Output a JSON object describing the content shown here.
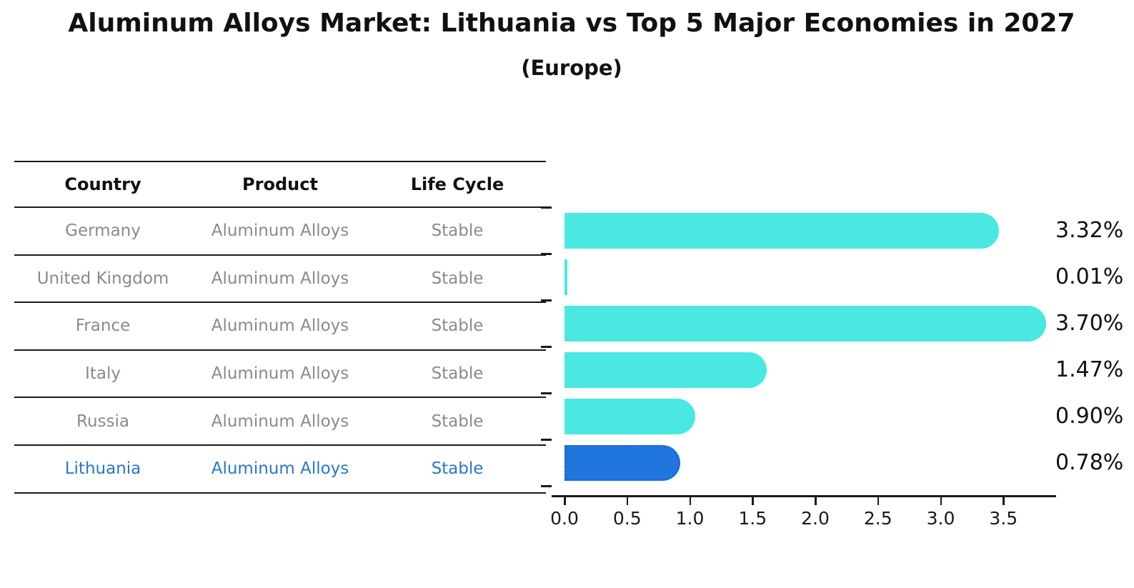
{
  "page": {
    "title": "Aluminum Alloys Market: Lithuania vs Top 5 Major Economies in 2027",
    "subtitle": "(Europe)"
  },
  "table": {
    "headers": [
      "Country",
      "Product",
      "Life Cycle"
    ],
    "rows": [
      {
        "country": "Germany",
        "product": "Aluminum Alloys",
        "life_cycle": "Stable",
        "highlight": false
      },
      {
        "country": "United Kingdom",
        "product": "Aluminum Alloys",
        "life_cycle": "Stable",
        "highlight": false
      },
      {
        "country": "France",
        "product": "Aluminum Alloys",
        "life_cycle": "Stable",
        "highlight": false
      },
      {
        "country": "Italy",
        "product": "Aluminum Alloys",
        "life_cycle": "Stable",
        "highlight": false
      },
      {
        "country": "Russia",
        "product": "Aluminum Alloys",
        "life_cycle": "Stable",
        "highlight": false
      },
      {
        "country": "Lithuania",
        "product": "Aluminum Alloys",
        "life_cycle": "Stable",
        "highlight": true
      }
    ]
  },
  "chart_data": {
    "type": "bar",
    "orientation": "horizontal",
    "title": "Aluminum Alloys Market: Lithuania vs Top 5 Major Economies in 2027",
    "subtitle": "(Europe)",
    "categories": [
      "Germany",
      "United Kingdom",
      "France",
      "Italy",
      "Russia",
      "Lithuania"
    ],
    "values": [
      3.32,
      0.01,
      3.7,
      1.47,
      0.9,
      0.78
    ],
    "value_labels": [
      "3.32%",
      "0.01%",
      "3.70%",
      "1.47%",
      "0.90%",
      "0.78%"
    ],
    "highlight_index": 5,
    "xlim": [
      0,
      3.9
    ],
    "xtick_labels": [
      "0.0",
      "0.5",
      "1.0",
      "1.5",
      "2.0",
      "2.5",
      "3.0",
      "3.5"
    ],
    "grid": false,
    "legend": null,
    "colors": {
      "bar": "#49E8E1",
      "highlight_bar": "#2176DE",
      "highlight_bar_edge": "#1a6ad0",
      "highlight_text": "#2878C8",
      "row_text": "#8a8a8a",
      "axis": "#1a1a1a"
    }
  }
}
